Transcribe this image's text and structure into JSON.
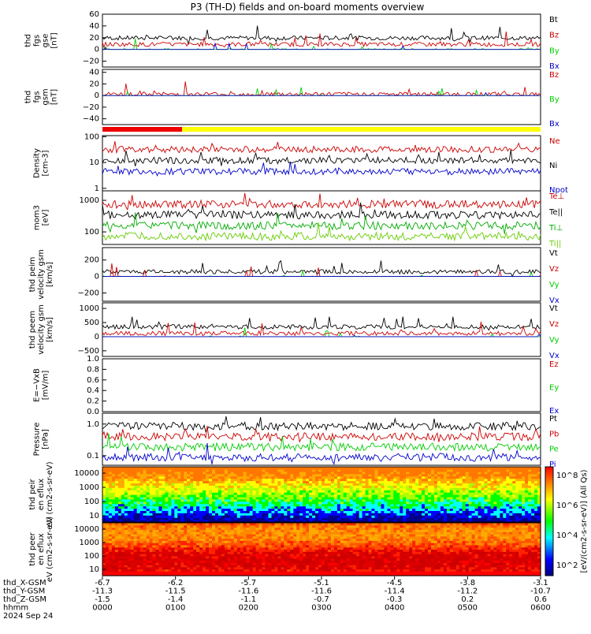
{
  "title": "P3 (TH-D) fields and on-board moments overview",
  "footer": {
    "row_labels": [
      "thd_X-GSM",
      "thd_Y-GSM",
      "thd_Z-GSM",
      "hhmm",
      "2024 Sep 24"
    ],
    "ticks": [
      {
        "x": "-6.7",
        "y": "-11.3",
        "z": "-1.5",
        "t": "0000"
      },
      {
        "x": "-6.2",
        "y": "-11.5",
        "z": "-1.4",
        "t": "0100"
      },
      {
        "x": "-5.7",
        "y": "-11.6",
        "z": "-1.1",
        "t": "0200"
      },
      {
        "x": "-5.1",
        "y": "-11.6",
        "z": "-0.7",
        "t": "0300"
      },
      {
        "x": "-4.5",
        "y": "-11.4",
        "z": "-0.3",
        "t": "0400"
      },
      {
        "x": "-3.8",
        "y": "-11.2",
        "z": "0.2",
        "t": "0500"
      },
      {
        "x": "-3.1",
        "y": "-10.7",
        "z": "0.6",
        "t": "0600"
      }
    ]
  },
  "colorbar": {
    "label": "[eV/(cm2-s-sr-eV)] (All Qs)",
    "ticks": [
      "10^2",
      "10^4",
      "10^6",
      "10^8"
    ]
  },
  "chart_data": [
    {
      "type": "line",
      "ylabel": "thd fgs gse [nT]",
      "ylim": [
        -30,
        60
      ],
      "yticks": [
        "60",
        "40",
        "20",
        "0",
        "−20"
      ],
      "series": [
        {
          "name": "Bt",
          "color": "#000000"
        },
        {
          "name": "Bz",
          "color": "#cc0000"
        },
        {
          "name": "By",
          "color": "#00cc00"
        },
        {
          "name": "Bx",
          "color": "#0000cc"
        }
      ]
    },
    {
      "type": "line",
      "ylabel": "thd fgs gsm [nT]",
      "ylim": [
        -50,
        45
      ],
      "yticks": [
        "40",
        "20",
        "0",
        "−20",
        "−40"
      ],
      "series": [
        {
          "name": "Bz",
          "color": "#cc0000"
        },
        {
          "name": "By",
          "color": "#00cc00"
        },
        {
          "name": "Bx",
          "color": "#0000cc"
        }
      ]
    },
    {
      "type": "line",
      "scale": "log",
      "ylabel": "Density [cm-3]",
      "ylim": [
        0.8,
        110
      ],
      "yticks": [
        "100",
        "10",
        "1"
      ],
      "series": [
        {
          "name": "Ne",
          "color": "#cc0000"
        },
        {
          "name": "Ni",
          "color": "#000000"
        },
        {
          "name": "Npot",
          "color": "#0000cc"
        }
      ]
    },
    {
      "type": "line",
      "scale": "log",
      "ylabel": "mom3 [eV]",
      "ylim": [
        40,
        2000
      ],
      "yticks": [
        "1000",
        "100"
      ],
      "series": [
        {
          "name": "Te⊥",
          "color": "#cc0000"
        },
        {
          "name": "Te||",
          "color": "#000000"
        },
        {
          "name": "Ti⊥",
          "color": "#00aa00"
        },
        {
          "name": "Ti||",
          "color": "#66cc00"
        }
      ]
    },
    {
      "type": "line",
      "ylabel": "thd peim velocity gsm [km/s]",
      "ylim": [
        -300,
        350
      ],
      "yticks": [
        "200",
        "0",
        "−200"
      ],
      "series": [
        {
          "name": "Vt",
          "color": "#000000"
        },
        {
          "name": "Vz",
          "color": "#cc0000"
        },
        {
          "name": "Vy",
          "color": "#00cc00"
        },
        {
          "name": "Vx",
          "color": "#0000cc"
        }
      ]
    },
    {
      "type": "line",
      "ylabel": "thd peem velocity gsm [km/s]",
      "ylim": [
        -700,
        1200
      ],
      "yticks": [
        "1000",
        "500",
        "0",
        "−500"
      ],
      "series": [
        {
          "name": "Vt",
          "color": "#000000"
        },
        {
          "name": "Vz",
          "color": "#cc0000"
        },
        {
          "name": "Vy",
          "color": "#00cc00"
        },
        {
          "name": "Vx",
          "color": "#0000cc"
        }
      ]
    },
    {
      "type": "line",
      "ylabel": "E=−VxB [mV/m]",
      "ylim": [
        0,
        1
      ],
      "yticks": [
        "1.0",
        "0.8",
        "0.6",
        "0.4",
        "0.2",
        "0.0"
      ],
      "series": [
        {
          "name": "Ez",
          "color": "#cc0000"
        },
        {
          "name": "Ey",
          "color": "#00cc00"
        },
        {
          "name": "Ex",
          "color": "#0000cc"
        }
      ]
    },
    {
      "type": "line",
      "scale": "log",
      "ylabel": "Pressure [nPa]",
      "ylim": [
        0.05,
        2.2
      ],
      "yticks": [
        "1.0",
        "0.1"
      ],
      "series": [
        {
          "name": "Pt",
          "color": "#000000"
        },
        {
          "name": "Pb",
          "color": "#cc0000"
        },
        {
          "name": "Pe",
          "color": "#00cc00"
        },
        {
          "name": "Pi",
          "color": "#0000cc"
        }
      ]
    },
    {
      "type": "heatmap",
      "ylabel": "thd peir en eflux eV (cm2-s-sr-eV)",
      "yticks": [
        "10000",
        "1000",
        "100",
        "10"
      ]
    },
    {
      "type": "heatmap",
      "ylabel": "thd peer en eflux eV (cm2-s-sr-eV)",
      "yticks": [
        "10000",
        "1000",
        "100",
        "10"
      ]
    }
  ]
}
